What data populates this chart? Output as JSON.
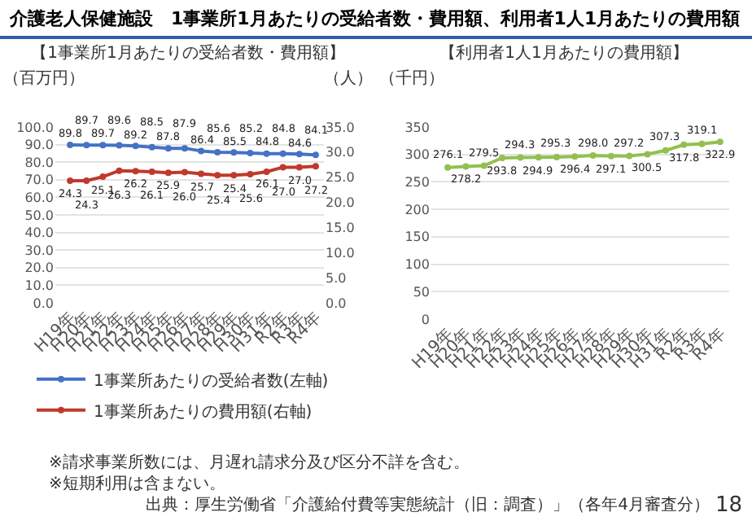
{
  "chart_data": [
    {
      "type": "line",
      "title": "介護老人保健施設　1事業所1月あたりの受給者数・費用額、利用者1人1月あたりの費用額",
      "subtitle": "【1事業所1月あたりの受給者数・費用額】",
      "ylabel": "（百万円）",
      "y2label": "（人）",
      "categories": [
        "H19年",
        "H20年",
        "H21年",
        "H22年",
        "H23年",
        "H24年",
        "H25年",
        "H26年",
        "H27年",
        "H28年",
        "H29年",
        "H30年",
        "H31年",
        "R2年",
        "R3年",
        "R4年"
      ],
      "series": [
        {
          "name": "1事業所あたりの受給者数(左軸)",
          "color": "#4472c4",
          "values": [
            89.8,
            89.7,
            89.7,
            89.6,
            89.2,
            88.5,
            87.8,
            87.9,
            86.4,
            85.6,
            85.5,
            85.2,
            84.8,
            84.8,
            84.6,
            84.1
          ],
          "value_labels": [
            "89.8",
            "89.7",
            "89.7",
            "89.6",
            "89.2",
            "88.5",
            "87.8",
            "87.9",
            "86.4",
            "85.6",
            "85.5",
            "85.2",
            "84.8",
            "84.8",
            "84.6",
            "84.1"
          ]
        },
        {
          "name": "1事業所あたりの費用額(右軸)",
          "color": "#c0392b",
          "axis": "y2",
          "values": [
            24.3,
            24.3,
            25.1,
            26.3,
            26.2,
            26.1,
            25.9,
            26.0,
            25.7,
            25.4,
            25.4,
            25.6,
            26.1,
            27.0,
            27.0,
            27.2
          ],
          "value_labels": [
            "24.3",
            "24.3",
            "25.1",
            "26.3",
            "26.2",
            "26.1",
            "25.9",
            "26.0",
            "25.7",
            "25.4",
            "25.4",
            "25.6",
            "26.1",
            "27.0",
            "27.0",
            "27.2"
          ]
        }
      ],
      "ylim": [
        0,
        100
      ],
      "yticks": [
        {
          "value": 0,
          "label": "0.0"
        },
        {
          "value": 10,
          "label": "10.0"
        },
        {
          "value": 20,
          "label": "20.0"
        },
        {
          "value": 30,
          "label": "30.0"
        },
        {
          "value": 40,
          "label": "40.0"
        },
        {
          "value": 50,
          "label": "50.0"
        },
        {
          "value": 60,
          "label": "60.0"
        },
        {
          "value": 70,
          "label": "70.0"
        },
        {
          "value": 80,
          "label": "80.0"
        },
        {
          "value": 90,
          "label": "90.0"
        },
        {
          "value": 100,
          "label": "100.0"
        }
      ],
      "y2lim": [
        0,
        35
      ],
      "y2ticks": [
        {
          "value": 0,
          "label": "0.0"
        },
        {
          "value": 5,
          "label": "5.0"
        },
        {
          "value": 10,
          "label": "10.0"
        },
        {
          "value": 15,
          "label": "15.0"
        },
        {
          "value": 20,
          "label": "20.0"
        },
        {
          "value": 25,
          "label": "25.0"
        },
        {
          "value": 30,
          "label": "30.0"
        },
        {
          "value": 35,
          "label": "35.0"
        }
      ],
      "grid": "y",
      "legend": "bottom",
      "marker": "circle",
      "line_style": "solid",
      "annotations": [
        "※請求事業所数には、月遅れ請求分及び区分不詳を含む。",
        "※短期利用は含まない。"
      ]
    },
    {
      "type": "line",
      "subtitle": "【利用者1人1月あたりの費用額】",
      "ylabel": "（千円）",
      "categories": [
        "H19年",
        "H20年",
        "H21年",
        "H22年",
        "H23年",
        "H24年",
        "H25年",
        "H26年",
        "H27年",
        "H28年",
        "H29年",
        "H30年",
        "H31年",
        "R2年",
        "R3年",
        "R4年"
      ],
      "series": [
        {
          "color": "#92c050",
          "values": [
            276.1,
            278.2,
            279.5,
            293.8,
            294.3,
            294.9,
            295.3,
            296.4,
            298.0,
            297.1,
            297.2,
            300.5,
            307.3,
            317.8,
            319.1,
            322.9
          ],
          "value_labels": [
            "276.1",
            "278.2",
            "279.5",
            "293.8",
            "294.3",
            "294.9",
            "295.3",
            "296.4",
            "298.0",
            "297.1",
            "297.2",
            "300.5",
            "307.3",
            "317.8",
            "319.1",
            "322.9"
          ]
        }
      ],
      "ylim": [
        0,
        350
      ],
      "yticks": [
        0,
        50,
        100,
        150,
        200,
        250,
        300,
        350
      ],
      "grid": "y",
      "legend": false,
      "marker": "circle",
      "line_style": "solid",
      "annotations": [
        "出典：厚生労働省「介護給付費等実態統計（旧：調査）」（各年4月審査分）",
        "18"
      ]
    }
  ]
}
